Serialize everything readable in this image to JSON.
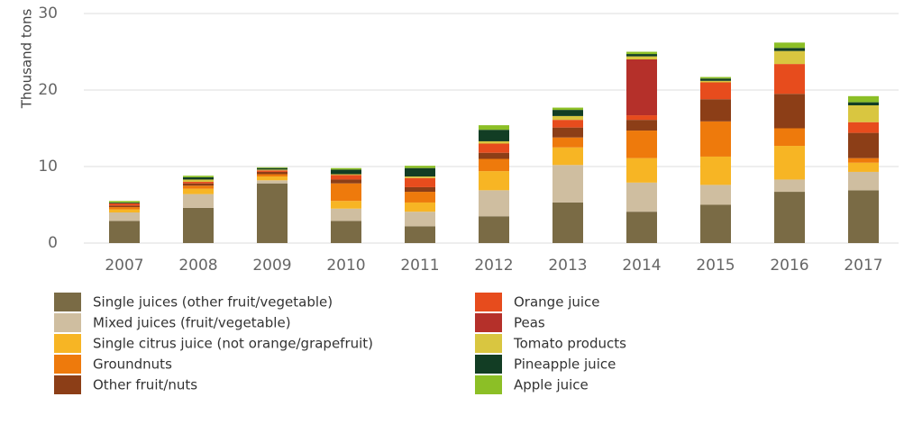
{
  "chart_data": {
    "type": "bar",
    "stacked": true,
    "y_label": "Thousand tons",
    "categories": [
      "2007",
      "2008",
      "2009",
      "2010",
      "2011",
      "2012",
      "2013",
      "2014",
      "2015",
      "2016",
      "2017"
    ],
    "series": [
      {
        "name": "Single juices (other fruit/vegetable)",
        "color": "#7a6b45",
        "values": [
          2.9,
          4.6,
          7.8,
          2.9,
          2.2,
          3.5,
          5.3,
          4.1,
          5.0,
          6.7,
          6.9
        ]
      },
      {
        "name": "Mixed juices (fruit/vegetable)",
        "color": "#cfbea0",
        "values": [
          1.1,
          1.8,
          0.4,
          1.6,
          1.9,
          3.4,
          4.9,
          3.8,
          2.6,
          1.6,
          2.4
        ]
      },
      {
        "name": "Single citrus juice (not orange/grapefruit)",
        "color": "#f7b524",
        "values": [
          0.4,
          0.7,
          0.5,
          1.0,
          1.2,
          2.5,
          2.3,
          3.2,
          3.7,
          4.4,
          1.2
        ]
      },
      {
        "name": "Groundnuts",
        "color": "#ee7a0c",
        "values": [
          0.3,
          0.4,
          0.3,
          2.3,
          1.4,
          1.6,
          1.3,
          3.6,
          4.6,
          2.3,
          0.6
        ]
      },
      {
        "name": "Other fruit/nuts",
        "color": "#8c3e17",
        "values": [
          0.2,
          0.3,
          0.3,
          0.5,
          0.6,
          0.8,
          1.3,
          1.4,
          2.9,
          4.5,
          3.3
        ]
      },
      {
        "name": "Orange juice",
        "color": "#e74c1d",
        "values": [
          0.3,
          0.2,
          0.2,
          0.6,
          1.2,
          1.2,
          1.0,
          0.6,
          2.2,
          3.9,
          1.4
        ]
      },
      {
        "name": "Peas",
        "color": "#b5302a",
        "values": [
          0,
          0,
          0,
          0,
          0,
          0,
          0,
          7.3,
          0,
          0,
          0
        ]
      },
      {
        "name": "Tomato products",
        "color": "#d9c640",
        "values": [
          0,
          0.3,
          0.1,
          0.1,
          0.2,
          0.3,
          0.5,
          0.4,
          0.2,
          1.7,
          2.2
        ]
      },
      {
        "name": "Pineapple juice",
        "color": "#123d24",
        "values": [
          0.1,
          0.3,
          0.2,
          0.6,
          1.1,
          1.5,
          0.8,
          0.3,
          0.3,
          0.4,
          0.4
        ]
      },
      {
        "name": "Apple juice",
        "color": "#8cbf26",
        "values": [
          0.2,
          0.2,
          0.1,
          0.2,
          0.3,
          0.6,
          0.3,
          0.3,
          0.2,
          0.7,
          0.8
        ]
      }
    ],
    "ylim": [
      0,
      30
    ],
    "yticks": [
      0,
      10,
      20,
      30
    ],
    "grid": true
  }
}
